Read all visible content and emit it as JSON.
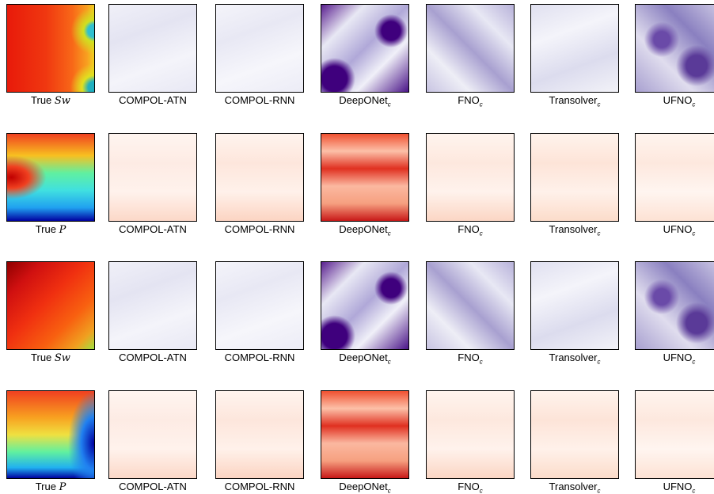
{
  "rows": [
    {
      "panels": [
        {
          "label": "True",
          "math": "Sw"
        },
        {
          "label": "COMPOL-ATN"
        },
        {
          "label": "COMPOL-RNN"
        },
        {
          "label": "DeepONet",
          "sub": "c"
        },
        {
          "label": "FNO",
          "sub": "c"
        },
        {
          "label": "Transolver",
          "sub": "c"
        },
        {
          "label": "UFNO",
          "sub": "c"
        }
      ]
    },
    {
      "panels": [
        {
          "label": "True",
          "math": "P"
        },
        {
          "label": "COMPOL-ATN"
        },
        {
          "label": "COMPOL-RNN"
        },
        {
          "label": "DeepONet",
          "sub": "c"
        },
        {
          "label": "FNO",
          "sub": "c"
        },
        {
          "label": "Transolver",
          "sub": "c"
        },
        {
          "label": "UFNO",
          "sub": "c"
        }
      ]
    },
    {
      "panels": [
        {
          "label": "True",
          "math": "Sw"
        },
        {
          "label": "COMPOL-ATN"
        },
        {
          "label": "COMPOL-RNN"
        },
        {
          "label": "DeepONet",
          "sub": "c"
        },
        {
          "label": "FNO",
          "sub": "c"
        },
        {
          "label": "Transolver",
          "sub": "c"
        },
        {
          "label": "UFNO",
          "sub": "c"
        }
      ]
    },
    {
      "panels": [
        {
          "label": "True",
          "math": "P"
        },
        {
          "label": "COMPOL-ATN"
        },
        {
          "label": "COMPOL-RNN"
        },
        {
          "label": "DeepONet",
          "sub": "c"
        },
        {
          "label": "FNO",
          "sub": "c"
        },
        {
          "label": "Transolver",
          "sub": "c"
        },
        {
          "label": "UFNO",
          "sub": "c"
        }
      ]
    }
  ]
}
